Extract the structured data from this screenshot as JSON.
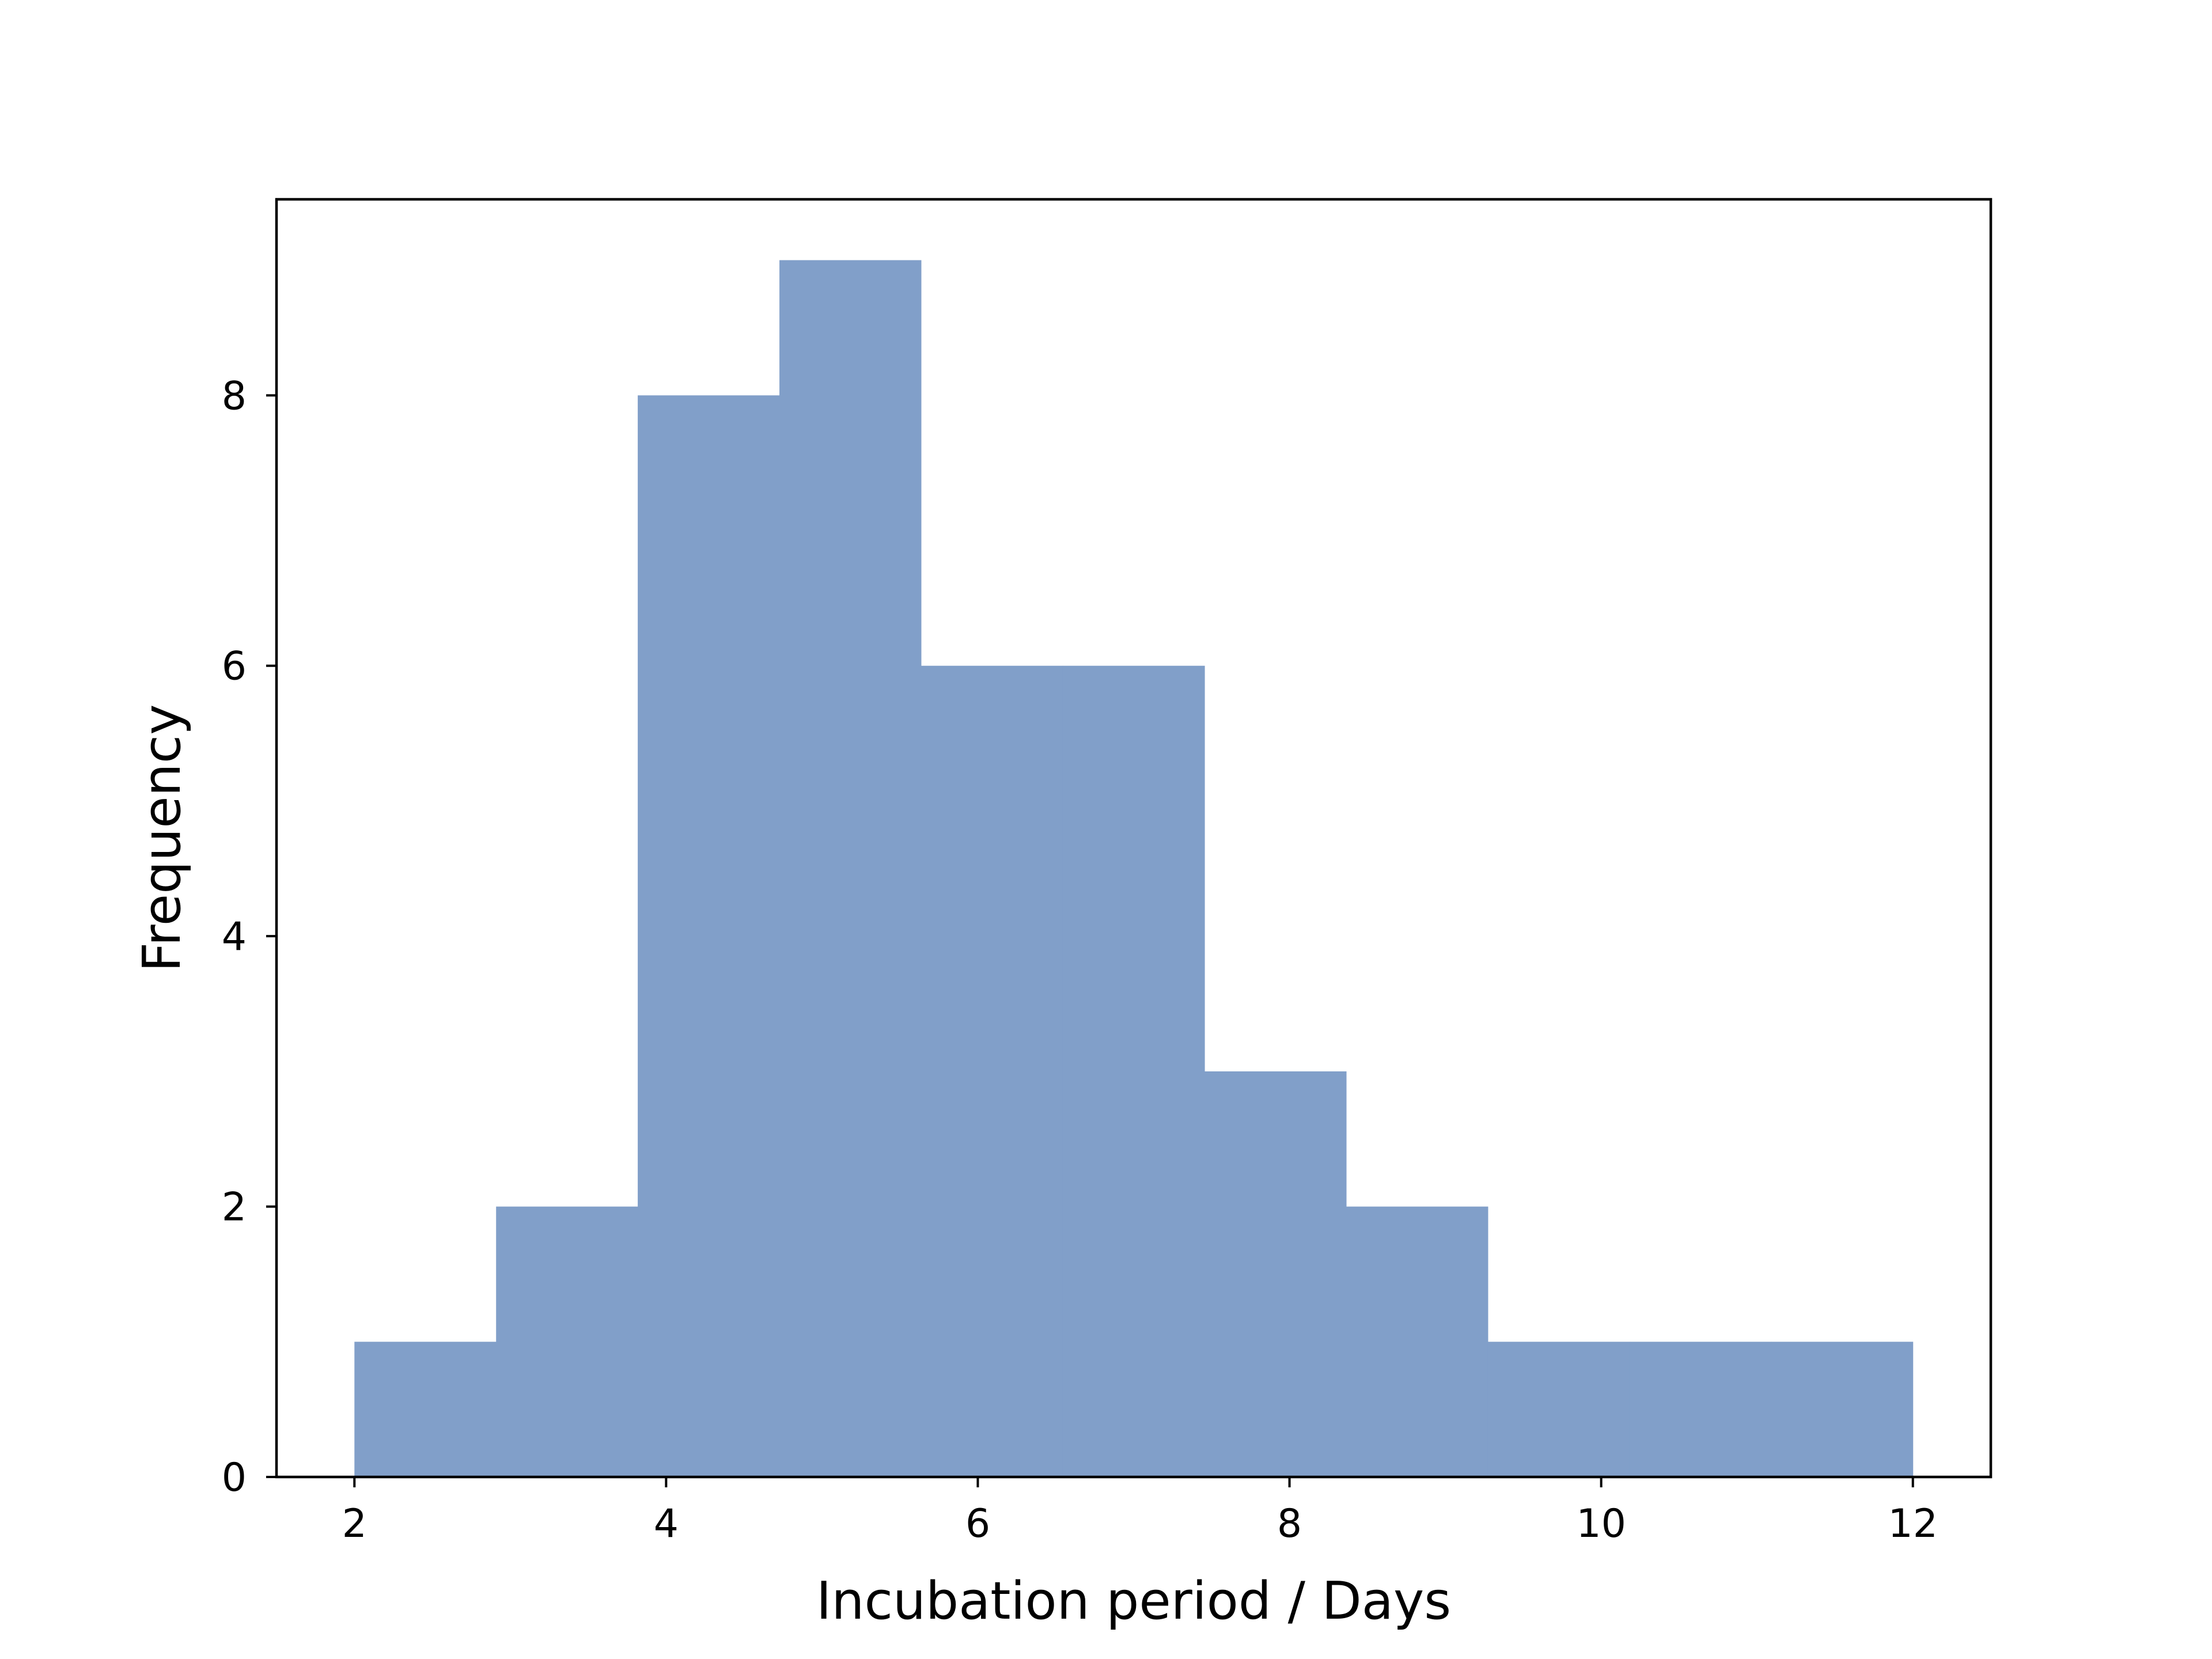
{
  "chart_data": {
    "type": "bar",
    "title": "",
    "xlabel": "Incubation period / Days",
    "ylabel": "Frequency",
    "xlim": [
      1.5,
      12.5
    ],
    "ylim": [
      0,
      9.45
    ],
    "grid": false,
    "bar_color": "#819fc9",
    "bins": [
      {
        "x0": 2.0,
        "x1": 2.909,
        "count": 1
      },
      {
        "x0": 2.909,
        "x1": 3.818,
        "count": 2
      },
      {
        "x0": 3.818,
        "x1": 4.727,
        "count": 8
      },
      {
        "x0": 4.727,
        "x1": 5.636,
        "count": 9
      },
      {
        "x0": 5.636,
        "x1": 6.545,
        "count": 6
      },
      {
        "x0": 6.545,
        "x1": 7.455,
        "count": 6
      },
      {
        "x0": 7.455,
        "x1": 8.364,
        "count": 3
      },
      {
        "x0": 8.364,
        "x1": 9.273,
        "count": 2
      },
      {
        "x0": 9.273,
        "x1": 10.182,
        "count": 1
      },
      {
        "x0": 10.182,
        "x1": 11.091,
        "count": 1
      },
      {
        "x0": 11.091,
        "x1": 12.0,
        "count": 1
      }
    ],
    "xticks": [
      2,
      4,
      6,
      8,
      10,
      12
    ],
    "xtick_labels": [
      "2",
      "4",
      "6",
      "8",
      "10",
      "12"
    ],
    "yticks": [
      0,
      2,
      4,
      6,
      8
    ],
    "ytick_labels": [
      "0",
      "2",
      "4",
      "6",
      "8"
    ]
  }
}
